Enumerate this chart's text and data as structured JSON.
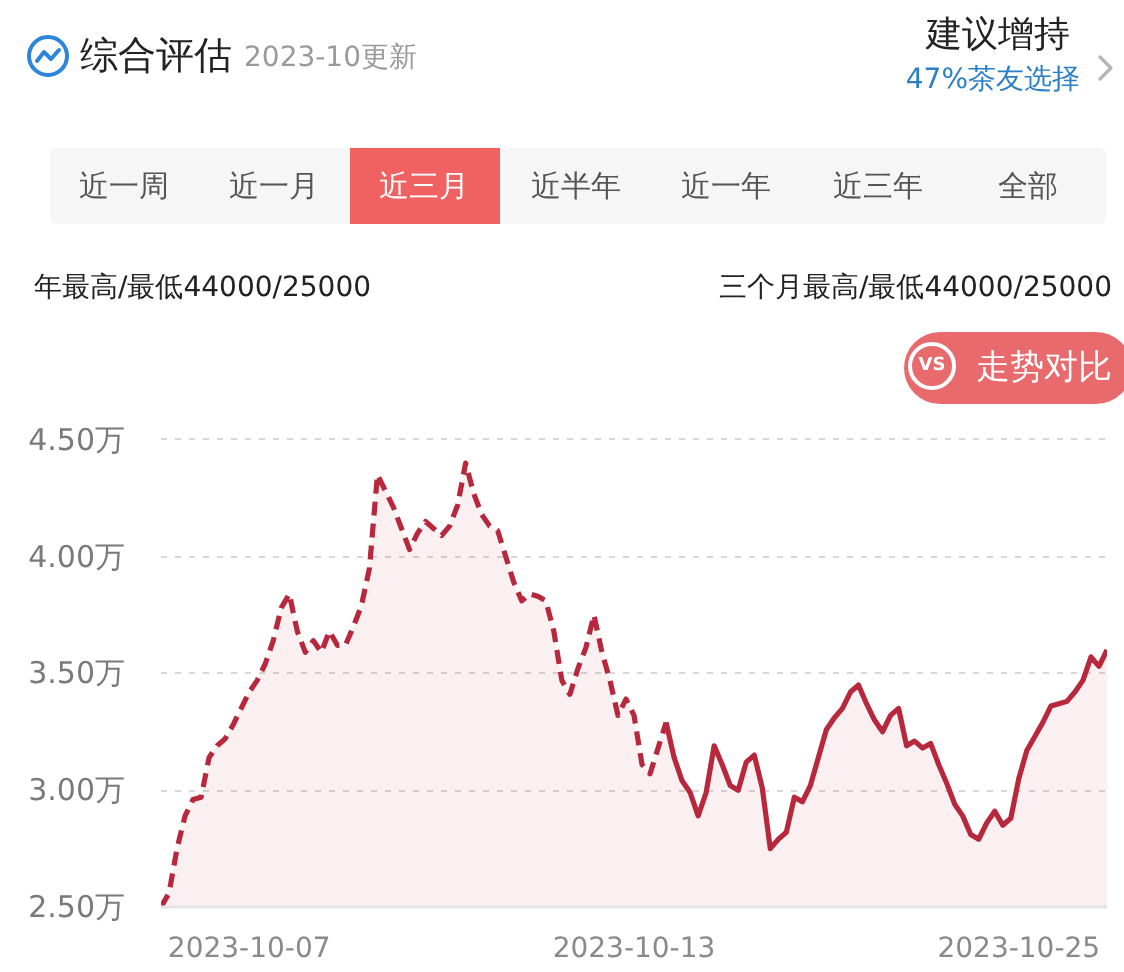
{
  "chart_data": {
    "type": "area",
    "title": "综合评估",
    "subtitle": "2023-10更新",
    "annotations": [
      "建议增持",
      "47%茶友选择",
      "近一周",
      "近一月",
      "近三月",
      "近半年",
      "近一年",
      "近三年",
      "全部",
      "年最高/最低44000/25000",
      "三个月最高/最低44000/25000",
      "VS",
      "走势对比"
    ],
    "categories": [
      null,
      null,
      null,
      null,
      null,
      null,
      null,
      null,
      null,
      null,
      null,
      "2023-10-07",
      null,
      null,
      null,
      null,
      null,
      null,
      null,
      null,
      null,
      null,
      null,
      null,
      null,
      null,
      null,
      null,
      null,
      null,
      null,
      null,
      null,
      null,
      null,
      null,
      null,
      null,
      null,
      null,
      null,
      null,
      null,
      null,
      null,
      null,
      null,
      null,
      null,
      null,
      null,
      null,
      null,
      null,
      null,
      null,
      null,
      null,
      null,
      "2023-10-13",
      null,
      null,
      null,
      null,
      null,
      null,
      null,
      null,
      null,
      null,
      null,
      null,
      null,
      null,
      null,
      null,
      null,
      null,
      null,
      null,
      null,
      null,
      null,
      null,
      null,
      null,
      null,
      null,
      null,
      null,
      null,
      null,
      null,
      null,
      null,
      null,
      null,
      null,
      null,
      null,
      null,
      null,
      null,
      null,
      null,
      null,
      null,
      "2023-10-25",
      null,
      null,
      null,
      null,
      null,
      null,
      null,
      null,
      null,
      null,
      null
    ],
    "series": [
      {
        "color": "#b8283c",
        "line_style": "dashed",
        "values": [
          2.5,
          2.56,
          2.75,
          2.89,
          2.96,
          2.97,
          3.14,
          3.19,
          3.22,
          3.28,
          3.35,
          3.42,
          3.47,
          3.54,
          3.64,
          3.78,
          3.84,
          3.68,
          3.59,
          3.64,
          3.59,
          3.68,
          3.62,
          3.62,
          3.7,
          3.79,
          3.95,
          4.35,
          4.28,
          4.21,
          4.12,
          4.03,
          4.1,
          4.15,
          4.12,
          4.09,
          4.13,
          4.22,
          4.4,
          4.27,
          4.18,
          4.13,
          4.11,
          4.0,
          3.89,
          3.81,
          3.84,
          3.83,
          3.81,
          3.68,
          3.47,
          3.41,
          3.52,
          3.61,
          3.75,
          3.59,
          3.47,
          3.32,
          3.39,
          3.32,
          3.11,
          3.07,
          3.18,
          3.29,
          null,
          null,
          null,
          null,
          null,
          null,
          null,
          null,
          null,
          null,
          null,
          null,
          null,
          null,
          null,
          null,
          null,
          null,
          null,
          null,
          null,
          null,
          null,
          null,
          null,
          null,
          null,
          null,
          null,
          null,
          null,
          null,
          null,
          null,
          null,
          null,
          null,
          null,
          null,
          null,
          null,
          null,
          null,
          null,
          null,
          null,
          null,
          null,
          null,
          null,
          null,
          null,
          null,
          null,
          null
        ]
      },
      {
        "color": "#b8283c",
        "line_style": "solid",
        "values": [
          null,
          null,
          null,
          null,
          null,
          null,
          null,
          null,
          null,
          null,
          null,
          null,
          null,
          null,
          null,
          null,
          null,
          null,
          null,
          null,
          null,
          null,
          null,
          null,
          null,
          null,
          null,
          null,
          null,
          null,
          null,
          null,
          null,
          null,
          null,
          null,
          null,
          null,
          null,
          null,
          null,
          null,
          null,
          null,
          null,
          null,
          null,
          null,
          null,
          null,
          null,
          null,
          null,
          null,
          null,
          null,
          null,
          null,
          null,
          null,
          null,
          null,
          null,
          3.29,
          3.14,
          3.04,
          2.99,
          2.89,
          2.99,
          3.19,
          3.11,
          3.02,
          3.0,
          3.12,
          3.15,
          3.01,
          2.75,
          2.79,
          2.82,
          2.97,
          2.95,
          3.02,
          3.14,
          3.26,
          3.31,
          3.35,
          3.42,
          3.45,
          3.37,
          3.3,
          3.25,
          3.32,
          3.35,
          3.19,
          3.21,
          3.18,
          3.2,
          3.11,
          3.03,
          2.94,
          2.89,
          2.81,
          2.79,
          2.86,
          2.91,
          2.85,
          2.88,
          3.05,
          3.17,
          3.23,
          3.29,
          3.36,
          3.37,
          3.38,
          3.42,
          3.47,
          3.57,
          3.53,
          3.6
        ]
      }
    ],
    "ylim": [
      2.5,
      4.52
    ],
    "yticks": [
      {
        "value": 2.5,
        "label": "2.50万"
      },
      {
        "value": 3.0,
        "label": "3.00万"
      },
      {
        "value": 3.5,
        "label": "3.50万"
      },
      {
        "value": 4.0,
        "label": "4.00万"
      },
      {
        "value": 4.5,
        "label": "4.50万"
      }
    ],
    "grid": "y"
  }
}
